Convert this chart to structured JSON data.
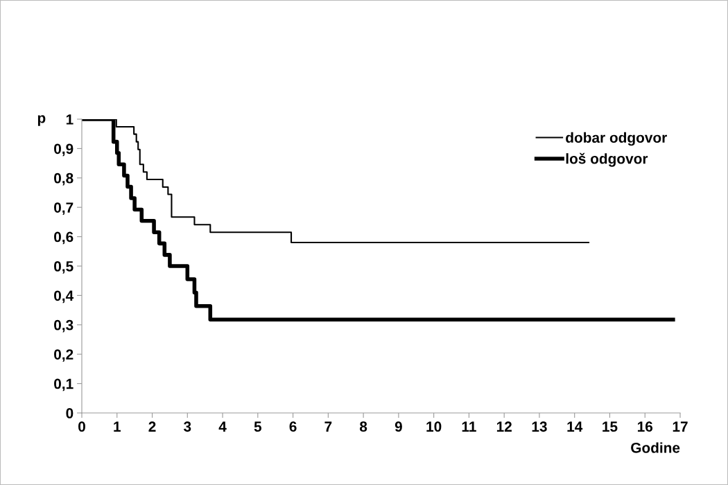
{
  "chart_data": {
    "type": "step",
    "xlabel": "Godine",
    "ylabel": "p",
    "xlim": [
      0,
      17
    ],
    "ylim": [
      0,
      1
    ],
    "xticks": [
      0,
      1,
      2,
      3,
      4,
      5,
      6,
      7,
      8,
      9,
      10,
      11,
      12,
      13,
      14,
      15,
      16,
      17
    ],
    "yticks": [
      0,
      {
        "value": 0.1,
        "label": "0,1"
      },
      {
        "value": 0.2,
        "label": "0,2"
      },
      {
        "value": 0.3,
        "label": "0,3"
      },
      {
        "value": 0.4,
        "label": "0,4"
      },
      {
        "value": 0.5,
        "label": "0,5"
      },
      {
        "value": 0.6,
        "label": "0,6"
      },
      {
        "value": 0.7,
        "label": "0,7"
      },
      {
        "value": 0.8,
        "label": "0,8"
      },
      {
        "value": 0.9,
        "label": "0,9"
      },
      1
    ],
    "grid": false,
    "legend": "top right",
    "marker": "none",
    "line_style": "solid",
    "series": [
      {
        "name": "dobar odgovor",
        "color": "#000000",
        "x": [
          0,
          0.98,
          1.48,
          1.55,
          1.6,
          1.65,
          1.75,
          1.85,
          2.3,
          2.45,
          2.55,
          3.2,
          3.65,
          5.95,
          14.4
        ],
        "values": [
          1,
          0.974,
          0.949,
          0.923,
          0.897,
          0.846,
          0.82,
          0.795,
          0.769,
          0.744,
          0.667,
          0.641,
          0.615,
          0.58,
          0.58
        ]
      },
      {
        "name": "loš odgovor",
        "color": "#000000",
        "x": [
          0,
          0.9,
          1.0,
          1.05,
          1.2,
          1.3,
          1.4,
          1.5,
          1.7,
          2.05,
          2.2,
          2.35,
          2.5,
          3.0,
          3.2,
          3.25,
          3.65,
          16.8
        ],
        "values": [
          1,
          0.923,
          0.885,
          0.846,
          0.808,
          0.77,
          0.731,
          0.692,
          0.654,
          0.615,
          0.577,
          0.538,
          0.5,
          0.455,
          0.41,
          0.364,
          0.318,
          0.318
        ]
      }
    ]
  }
}
